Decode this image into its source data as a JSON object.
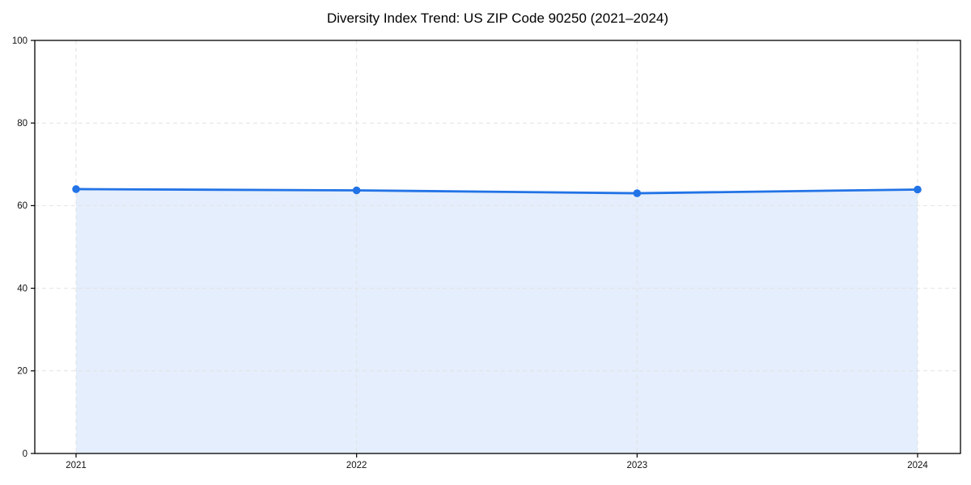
{
  "chart_data": {
    "type": "area",
    "title": "Diversity Index Trend: US ZIP Code 90250 (2021–2024)",
    "x": [
      2021,
      2022,
      2023,
      2024
    ],
    "xtick_labels": [
      "2021",
      "2022",
      "2023",
      "2024"
    ],
    "series": [
      {
        "name": "Diversity Index",
        "values": [
          64.0,
          63.7,
          63.0,
          63.9
        ]
      }
    ],
    "xlabel": "",
    "ylabel": "",
    "ylim": [
      0,
      100
    ],
    "yticks": [
      0,
      20,
      40,
      60,
      80,
      100
    ],
    "grid": true,
    "grid_style": "dashed",
    "legend": "none",
    "marker": "circle",
    "colors": {
      "line": "#2273e6",
      "fill": "#2273e6",
      "fill_opacity": 0.12,
      "grid": "#e2e2e2",
      "spine": "#000000",
      "background": "#ffffff",
      "text": "#111111"
    }
  }
}
